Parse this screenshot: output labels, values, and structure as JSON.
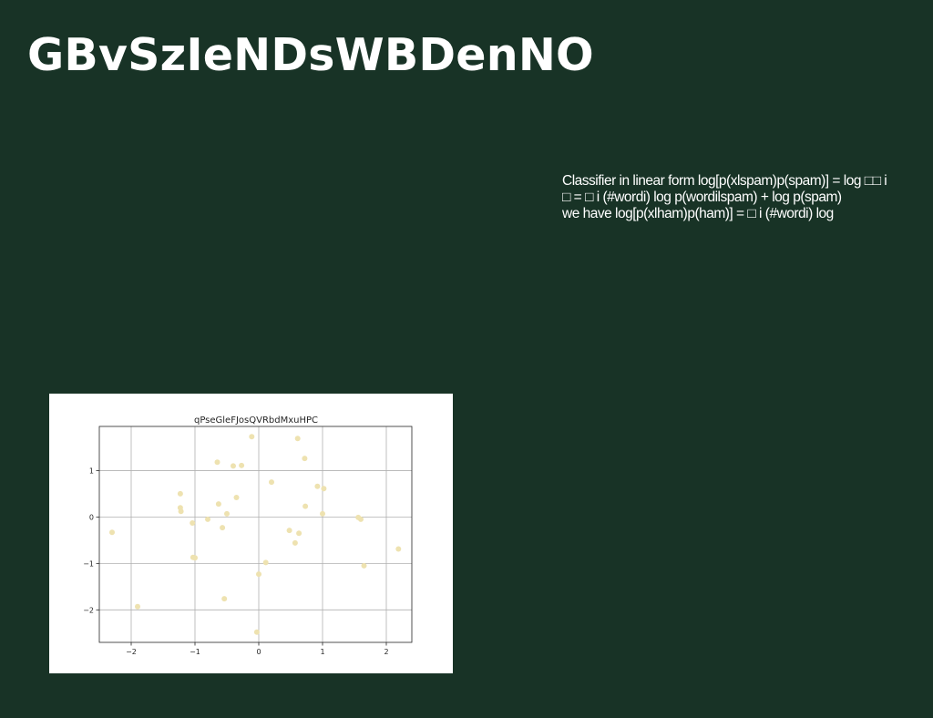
{
  "slide": {
    "title": "GBvSzIeNDsWBDenNO",
    "body_lines": [
      "Classifier in linear form log[p(xlspam)p(spam)] = log □□ i",
      "□ = □ i (#wordi) log p(wordilspam) + log p(spam)",
      "we have log[p(xlham)p(ham)] = □ i (#wordi) log"
    ]
  },
  "colors": {
    "background": "#183326",
    "text": "#ffffff",
    "chart_background": "#ffffff",
    "marker": "#eee2b0",
    "grid": "#b0b0b0"
  },
  "chart_data": {
    "type": "scatter",
    "title": "qPseGleFJosQVRbdMxuHPC",
    "xlabel": "",
    "ylabel": "",
    "xlim": [
      -2.5,
      2.4
    ],
    "ylim": [
      -2.7,
      1.95
    ],
    "xticks": [
      -2,
      -1,
      0,
      1,
      2
    ],
    "yticks": [
      1,
      0,
      -1,
      -2
    ],
    "xtick_labels": [
      "−2",
      "−1",
      "0",
      "1",
      "2"
    ],
    "ytick_labels": [
      "1",
      "0",
      "−1",
      "−2"
    ],
    "grid": true,
    "points": [
      {
        "x": -2.3,
        "y": -0.33
      },
      {
        "x": -1.9,
        "y": -1.93
      },
      {
        "x": -1.23,
        "y": 0.5
      },
      {
        "x": -1.23,
        "y": 0.2
      },
      {
        "x": -1.22,
        "y": 0.12
      },
      {
        "x": -1.04,
        "y": -0.13
      },
      {
        "x": -1.03,
        "y": -0.87
      },
      {
        "x": -1.0,
        "y": -0.88
      },
      {
        "x": -0.8,
        "y": -0.05
      },
      {
        "x": -0.65,
        "y": 1.18
      },
      {
        "x": -0.63,
        "y": 0.28
      },
      {
        "x": -0.57,
        "y": -0.23
      },
      {
        "x": -0.54,
        "y": -1.76
      },
      {
        "x": -0.5,
        "y": 0.07
      },
      {
        "x": -0.4,
        "y": 1.1
      },
      {
        "x": -0.35,
        "y": 0.42
      },
      {
        "x": -0.27,
        "y": 1.11
      },
      {
        "x": -0.11,
        "y": 1.73
      },
      {
        "x": -0.03,
        "y": -2.48
      },
      {
        "x": 0.0,
        "y": -1.23
      },
      {
        "x": 0.11,
        "y": -0.98
      },
      {
        "x": 0.2,
        "y": 0.75
      },
      {
        "x": 0.48,
        "y": -0.29
      },
      {
        "x": 0.57,
        "y": -0.56
      },
      {
        "x": 0.61,
        "y": 1.69
      },
      {
        "x": 0.63,
        "y": -0.35
      },
      {
        "x": 0.72,
        "y": 1.26
      },
      {
        "x": 0.73,
        "y": 0.23
      },
      {
        "x": 0.92,
        "y": 0.66
      },
      {
        "x": 1.0,
        "y": 0.07
      },
      {
        "x": 1.02,
        "y": 0.61
      },
      {
        "x": 1.56,
        "y": -0.01
      },
      {
        "x": 1.6,
        "y": -0.05
      },
      {
        "x": 1.65,
        "y": -1.05
      },
      {
        "x": 2.19,
        "y": -0.69
      }
    ]
  }
}
